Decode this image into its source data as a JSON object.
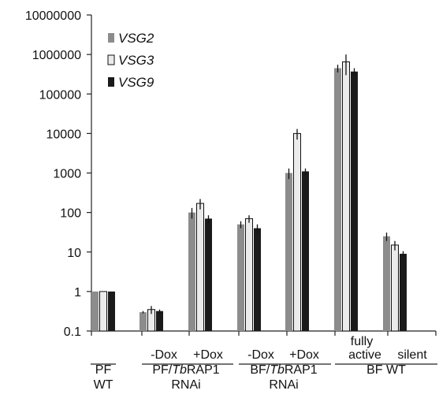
{
  "chart_data": {
    "type": "bar",
    "scale": "log",
    "ylim": [
      0.1,
      10000000
    ],
    "yticks": [
      "10000000",
      "1000000",
      "100000",
      "10000",
      "1000",
      "100",
      "10",
      "1",
      "0.1"
    ],
    "colors": {
      "VSG2": "#8c8c8c",
      "VSG3": "#ebebeb",
      "VSG9": "#1a1a1a"
    },
    "legend": [
      {
        "name": "VSG2"
      },
      {
        "name": "VSG3"
      },
      {
        "name": "VSG9"
      }
    ],
    "groups": [
      {
        "id": "pf-wt",
        "values": {
          "VSG2": 1,
          "VSG3": 1,
          "VSG9": 1
        },
        "err": {
          "VSG2": 0,
          "VSG3": 0,
          "VSG9": 0
        }
      },
      {
        "id": "pf-rnai-minus",
        "values": {
          "VSG2": 0.3,
          "VSG3": 0.35,
          "VSG9": 0.32
        },
        "err": {
          "VSG2": 0.02,
          "VSG3": 0.08,
          "VSG9": 0.03
        }
      },
      {
        "id": "pf-rnai-plus",
        "values": {
          "VSG2": 100,
          "VSG3": 170,
          "VSG9": 70
        },
        "err": {
          "VSG2": 30,
          "VSG3": 50,
          "VSG9": 15
        }
      },
      {
        "id": "bf-rnai-minus",
        "values": {
          "VSG2": 50,
          "VSG3": 70,
          "VSG9": 40
        },
        "err": {
          "VSG2": 10,
          "VSG3": 15,
          "VSG9": 10
        }
      },
      {
        "id": "bf-rnai-plus",
        "values": {
          "VSG2": 1000,
          "VSG3": 10000,
          "VSG9": 1100
        },
        "err": {
          "VSG2": 300,
          "VSG3": 3000,
          "VSG9": 200
        }
      },
      {
        "id": "bf-wt-active",
        "values": {
          "VSG2": 450000,
          "VSG3": 650000,
          "VSG9": 370000
        },
        "err": {
          "VSG2": 100000,
          "VSG3": 350000,
          "VSG9": 80000
        }
      },
      {
        "id": "bf-wt-silent",
        "values": {
          "VSG2": 25,
          "VSG3": 15,
          "VSG9": 9
        },
        "err": {
          "VSG2": 6,
          "VSG3": 4,
          "VSG9": 1.5
        }
      }
    ],
    "labels": {
      "pf_wt_line1": "PF",
      "pf_wt_line2": "WT",
      "pf_minus": "-Dox",
      "pf_plus": "+Dox",
      "pf_rnai_pre": "PF/",
      "pf_rnai_it": "Tb",
      "pf_rnai_post": "RAP1",
      "pf_rnai_line2": "RNAi",
      "bf_minus": "-Dox",
      "bf_plus": "+Dox",
      "bf_rnai_pre": "BF/",
      "bf_rnai_it": "Tb",
      "bf_rnai_post": "RAP1",
      "bf_rnai_line2": "RNAi",
      "active_line1": "fully",
      "active_line2": "active",
      "silent": "silent",
      "bf_wt": "BF WT"
    }
  }
}
